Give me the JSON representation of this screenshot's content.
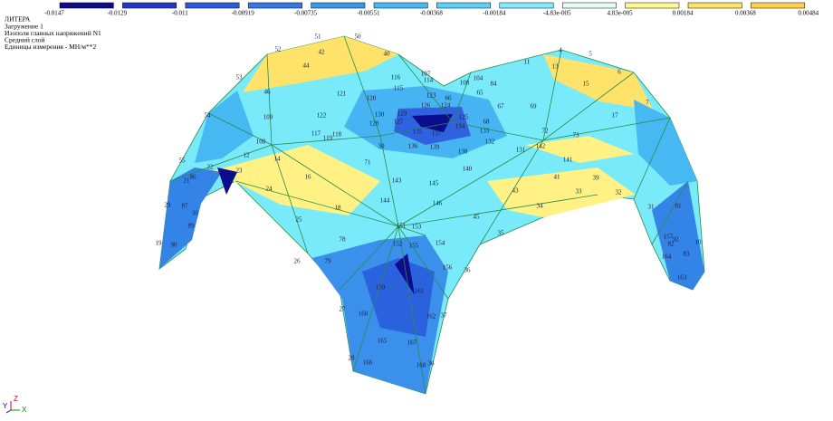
{
  "header": {
    "lines": [
      "ЛИТЕРА",
      "Загружение 1",
      "Изополя главных напряжений N1",
      "Средний слой",
      "Единицы измерения - МН/м**2"
    ]
  },
  "legend": {
    "colors": [
      "#0c0c8c",
      "#2438c8",
      "#2e58dc",
      "#3278e6",
      "#3a98ec",
      "#46b8f2",
      "#5ad2f8",
      "#86ecfc",
      "#e6fff2",
      "#fff890",
      "#ffe468",
      "#ffd24a"
    ],
    "labels": [
      "-0.0147",
      "-0.0129",
      "-0.011",
      "-0.00919",
      "-0.00735",
      "-0.00551",
      "-0.00368",
      "-0.00184",
      "-4.83e-005",
      "4.83e-005",
      "0.00184",
      "0.00368",
      "0.00484"
    ]
  },
  "node_labels": [
    "51",
    "50",
    "52",
    "42",
    "40",
    "44",
    "4",
    "5",
    "11",
    "13",
    "6",
    "53",
    "116",
    "107",
    "114",
    "104",
    "108",
    "84",
    "15",
    "46",
    "121",
    "120",
    "115",
    "123",
    "66",
    "65",
    "126",
    "124",
    "67",
    "69",
    "7",
    "54",
    "109",
    "122",
    "130",
    "129",
    "125",
    "68",
    "17",
    "128",
    "127",
    "134",
    "133",
    "72",
    "118",
    "117",
    "119",
    "135",
    "137",
    "73",
    "108",
    "136",
    "139",
    "132",
    "30",
    "131",
    "142",
    "12",
    "14",
    "138",
    "55",
    "22",
    "23",
    "71",
    "140",
    "141",
    "86",
    "16",
    "143",
    "145",
    "41",
    "39",
    "21",
    "24",
    "43",
    "33",
    "32",
    "144",
    "146",
    "34",
    "29",
    "87",
    "18",
    "31",
    "81",
    "91",
    "45",
    "25",
    "89",
    "151",
    "153",
    "35",
    "157",
    "92",
    "78",
    "19",
    "90",
    "152",
    "155",
    "154",
    "82",
    "10",
    "83",
    "164",
    "79",
    "26",
    "156",
    "36",
    "163",
    "159",
    "161",
    "27",
    "160",
    "162",
    "37",
    "165",
    "167",
    "28",
    "166",
    "168",
    "36"
  ],
  "axis_icon": {
    "y": "Y",
    "z": "Z",
    "x": "X"
  }
}
